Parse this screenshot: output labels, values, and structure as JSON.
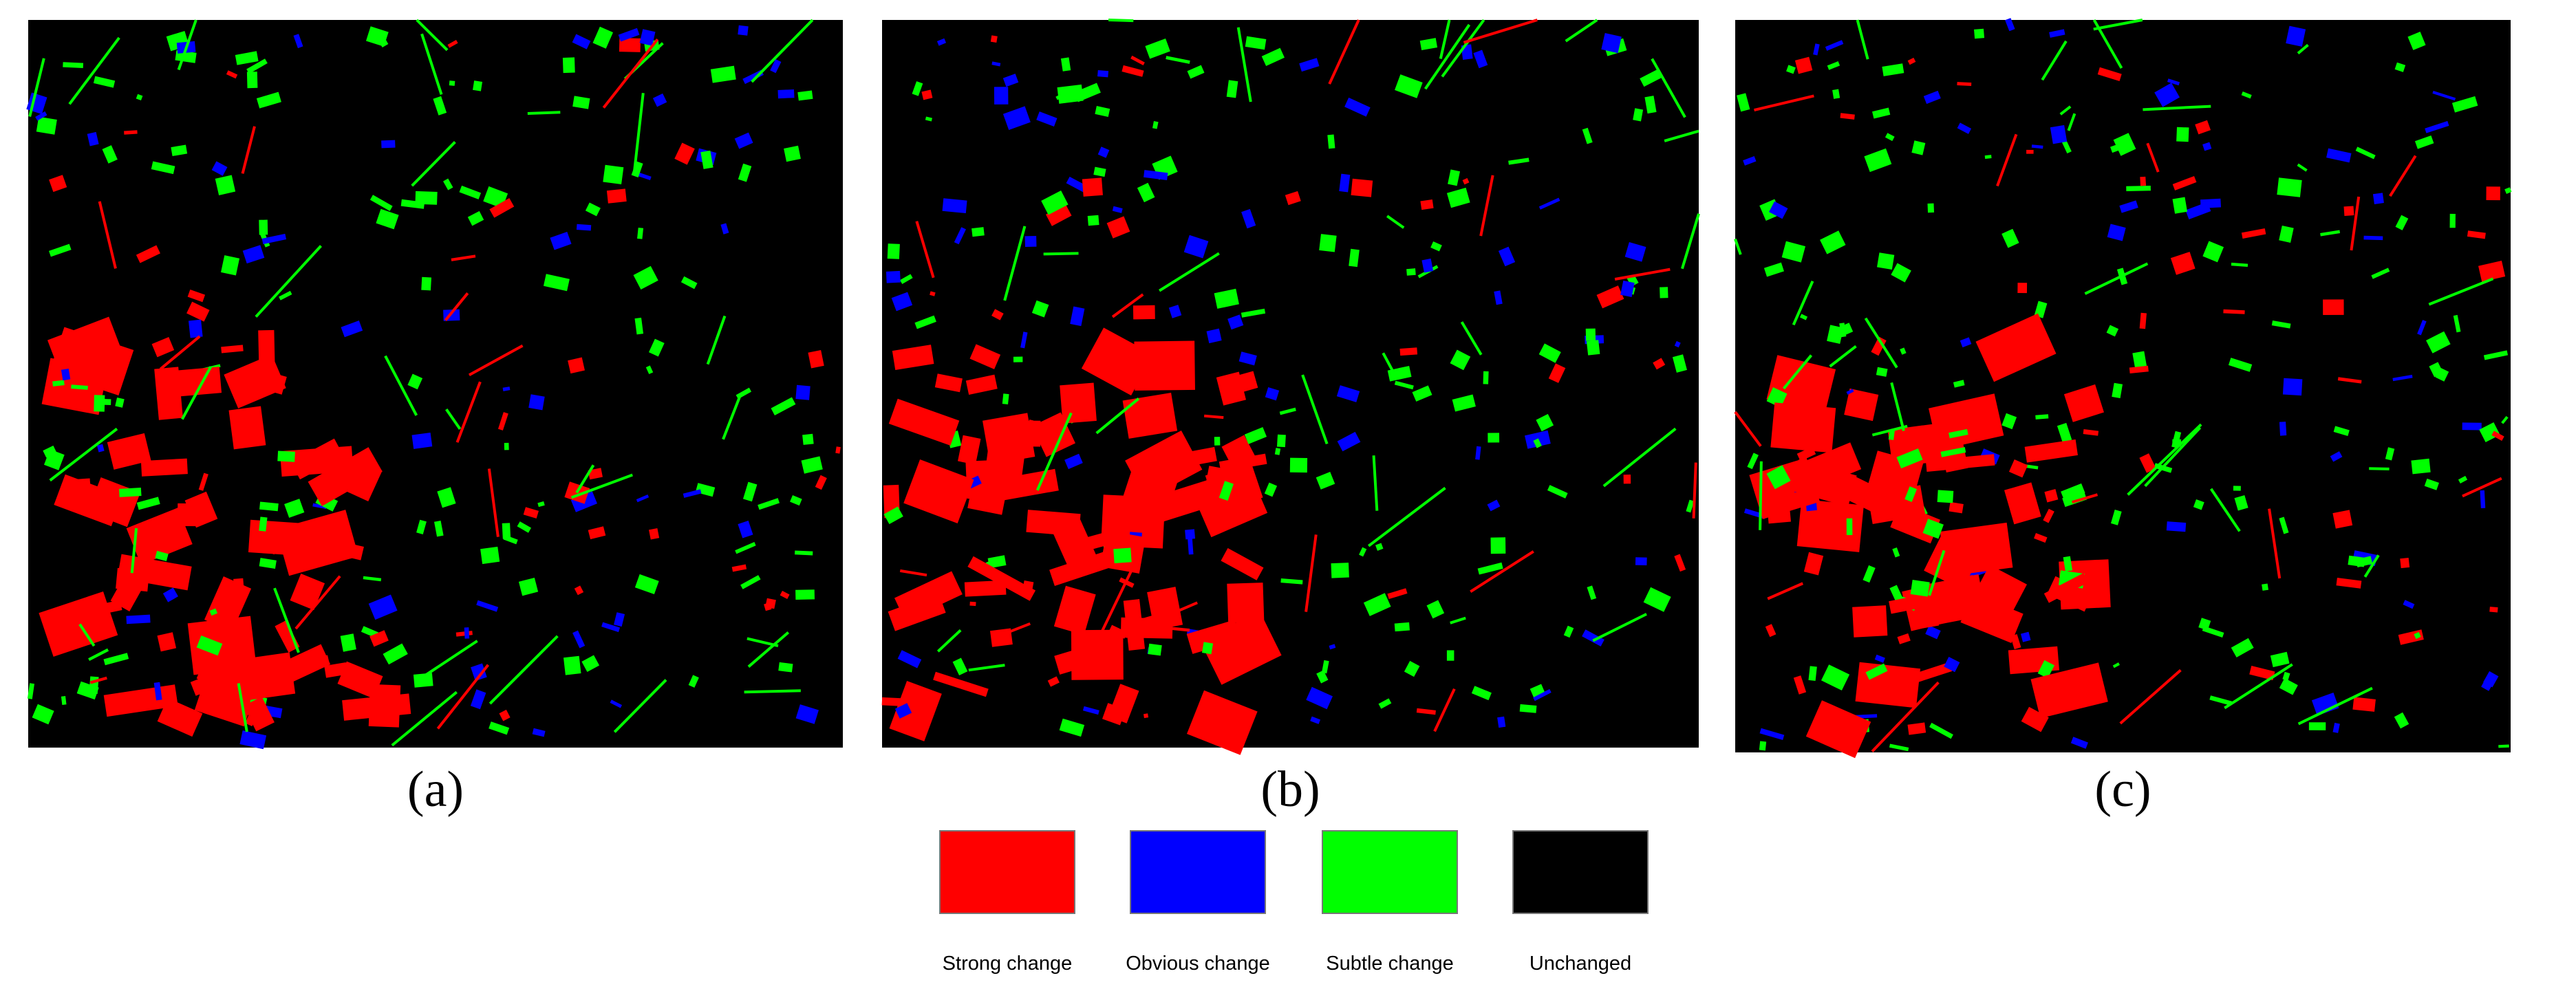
{
  "panels": [
    {
      "label": "(a)"
    },
    {
      "label": "(b)"
    },
    {
      "label": "(c)"
    }
  ],
  "legend": [
    {
      "label": "Strong change",
      "color": "#ff0000"
    },
    {
      "label": "Obvious change",
      "color": "#0000ff"
    },
    {
      "label": "Subtle change",
      "color": "#00ff00"
    },
    {
      "label": "Unchanged",
      "color": "#000000"
    }
  ]
}
